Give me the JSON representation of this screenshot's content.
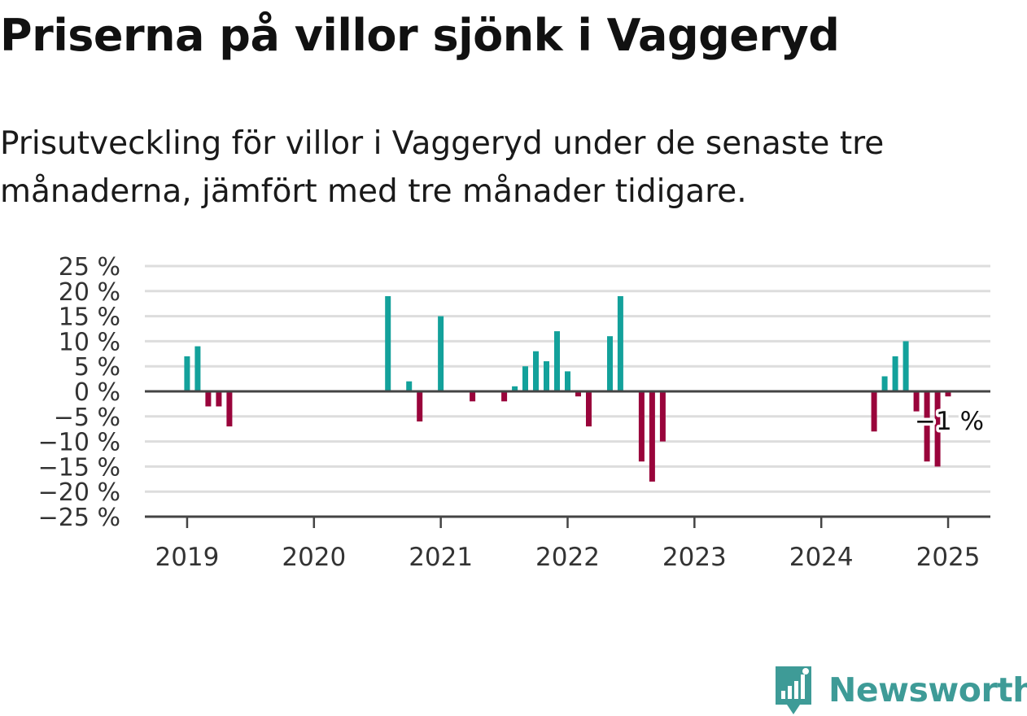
{
  "title": "Priserna på villor sjönk i Vaggeryd",
  "subtitle": "Prisutveckling för villor i Vaggeryd under de senaste tre månaderna, jämfört med tre månader tidigare.",
  "brand": "Newsworthy",
  "colors": {
    "positive": "#13a19b",
    "negative": "#99043b",
    "grid": "#dddddd",
    "axis": "#444444",
    "brand": "#3e9b97"
  },
  "chart_data": {
    "type": "bar",
    "title": "",
    "xlabel": "",
    "ylabel": "",
    "ylim": [
      -25,
      25
    ],
    "xlim": [
      "2018-09",
      "2025-05"
    ],
    "grid": true,
    "yticks": [
      25,
      20,
      15,
      10,
      5,
      0,
      -5,
      -10,
      -15,
      -20,
      -25
    ],
    "ytick_labels": [
      "25 %",
      "20 %",
      "15 %",
      "10 %",
      "5 %",
      "0 %",
      "−5 %",
      "−10 %",
      "−15 %",
      "−20 %",
      "−25 %"
    ],
    "xticks": [
      "2019",
      "2020",
      "2021",
      "2022",
      "2023",
      "2024",
      "2025"
    ],
    "end_label": "−1 %",
    "points": [
      {
        "month": "2019-01",
        "value": 7
      },
      {
        "month": "2019-02",
        "value": 9
      },
      {
        "month": "2019-03",
        "value": -3
      },
      {
        "month": "2019-04",
        "value": -3
      },
      {
        "month": "2019-05",
        "value": -7
      },
      {
        "month": "2020-08",
        "value": 19
      },
      {
        "month": "2020-10",
        "value": 2
      },
      {
        "month": "2020-11",
        "value": -6
      },
      {
        "month": "2021-01",
        "value": 15
      },
      {
        "month": "2021-04",
        "value": -2
      },
      {
        "month": "2021-07",
        "value": -2
      },
      {
        "month": "2021-08",
        "value": 1
      },
      {
        "month": "2021-09",
        "value": 5
      },
      {
        "month": "2021-10",
        "value": 8
      },
      {
        "month": "2021-11",
        "value": 6
      },
      {
        "month": "2021-12",
        "value": 12
      },
      {
        "month": "2022-01",
        "value": 4
      },
      {
        "month": "2022-02",
        "value": -1
      },
      {
        "month": "2022-03",
        "value": -7
      },
      {
        "month": "2022-05",
        "value": 11
      },
      {
        "month": "2022-06",
        "value": 19
      },
      {
        "month": "2022-08",
        "value": -14
      },
      {
        "month": "2022-09",
        "value": -18
      },
      {
        "month": "2022-10",
        "value": -10
      },
      {
        "month": "2024-06",
        "value": -8
      },
      {
        "month": "2024-07",
        "value": 3
      },
      {
        "month": "2024-08",
        "value": 7
      },
      {
        "month": "2024-09",
        "value": 10
      },
      {
        "month": "2024-10",
        "value": -4
      },
      {
        "month": "2024-11",
        "value": -14
      },
      {
        "month": "2024-12",
        "value": -15
      },
      {
        "month": "2025-01",
        "value": -1
      }
    ]
  }
}
